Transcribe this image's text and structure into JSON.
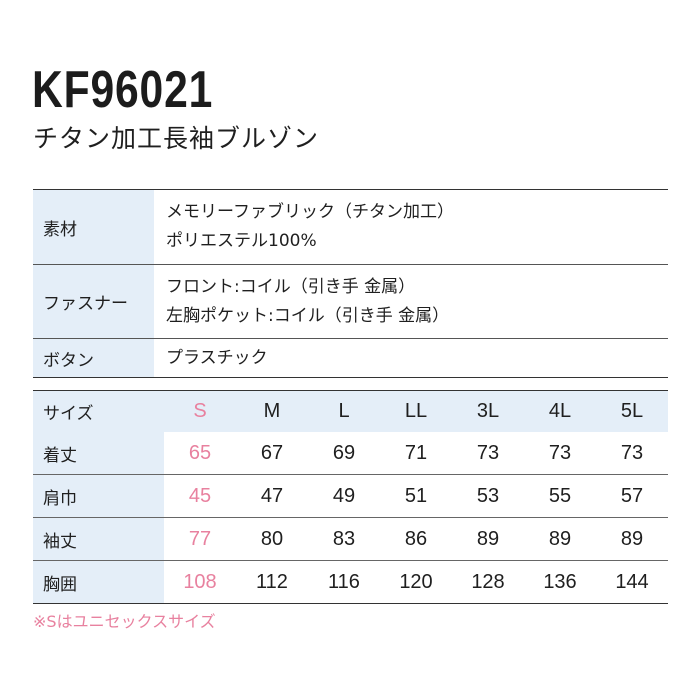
{
  "header": {
    "product_code": "KF96021",
    "product_name": "チタン加工長袖ブルゾン"
  },
  "spec": {
    "rows": [
      {
        "label": "素材",
        "lines": [
          "メモリーファブリック（チタン加工）",
          "ポリエステル100%"
        ]
      },
      {
        "label": "ファスナー",
        "lines": [
          "フロント:コイル（引き手 金属）",
          "左胸ポケット:コイル（引き手 金属）"
        ]
      },
      {
        "label": "ボタン",
        "lines": [
          "プラスチック"
        ]
      }
    ]
  },
  "size_table": {
    "header_label": "サイズ",
    "sizes": [
      "S",
      "M",
      "L",
      "LL",
      "3L",
      "4L",
      "5L"
    ],
    "rows": [
      {
        "label": "着丈",
        "values": [
          "65",
          "67",
          "69",
          "71",
          "73",
          "73",
          "73"
        ]
      },
      {
        "label": "肩巾",
        "values": [
          "45",
          "47",
          "49",
          "51",
          "53",
          "55",
          "57"
        ]
      },
      {
        "label": "袖丈",
        "values": [
          "77",
          "80",
          "83",
          "86",
          "89",
          "89",
          "89"
        ]
      },
      {
        "label": "胸囲",
        "values": [
          "108",
          "112",
          "116",
          "120",
          "128",
          "136",
          "144"
        ]
      }
    ],
    "highlight_color": "#e8819f",
    "header_bg_color": "#e4eef8"
  },
  "note": "※Sはユニセックスサイズ"
}
